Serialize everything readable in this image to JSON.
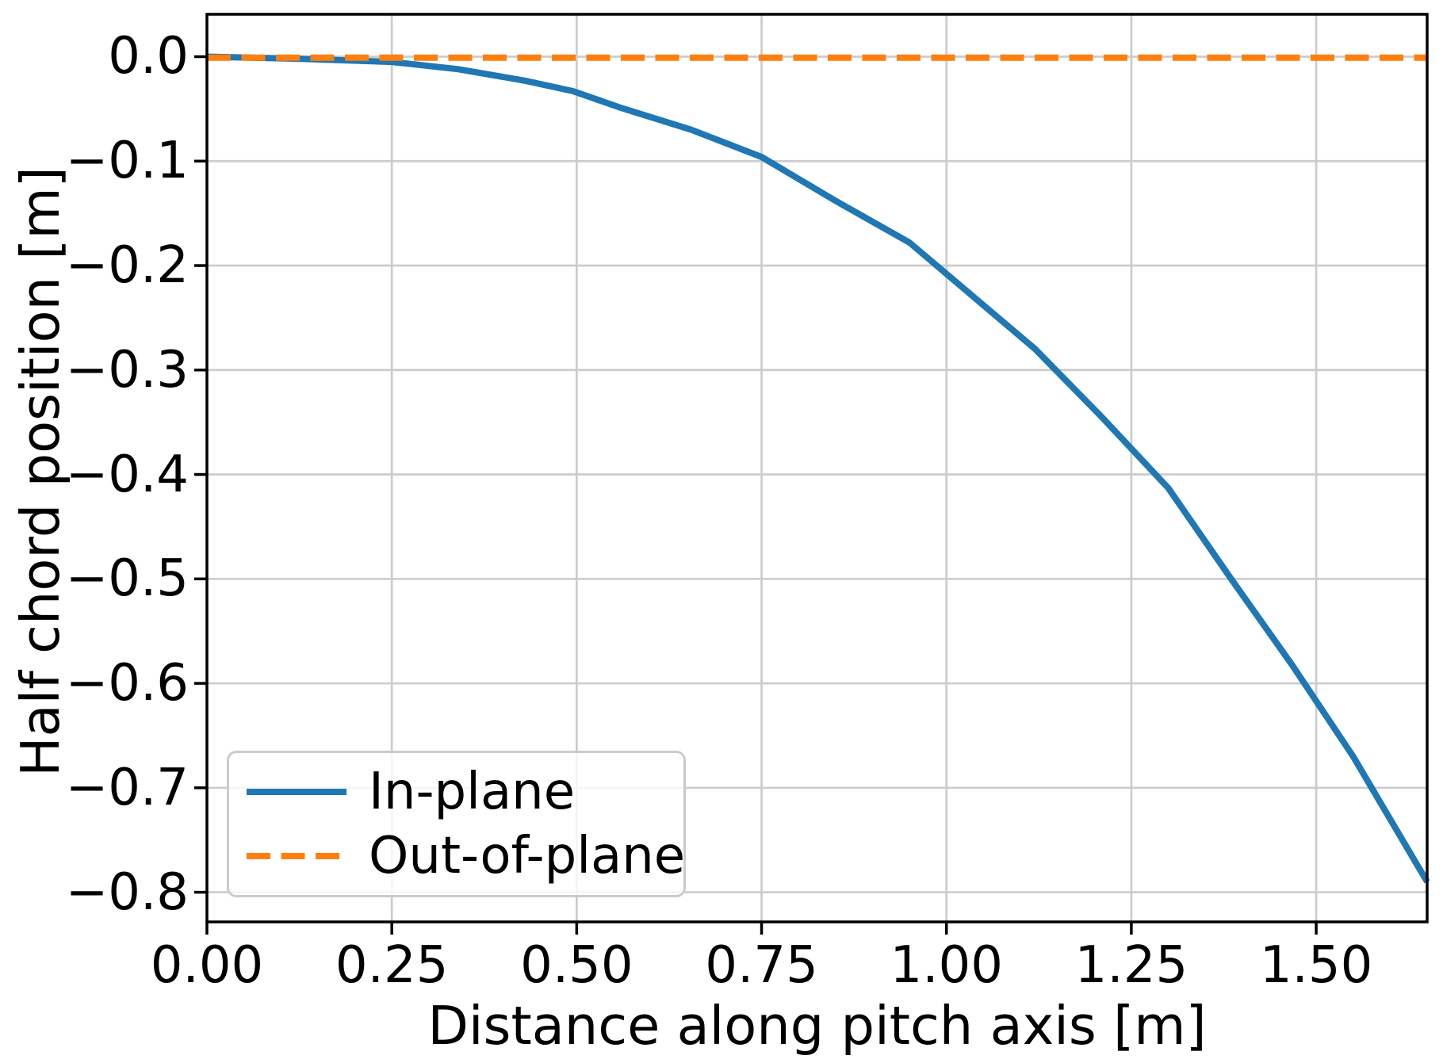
{
  "chart_data": {
    "type": "line",
    "xlabel": "Distance along pitch axis [m]",
    "ylabel": "Half chord position [m]",
    "xlim": [
      0,
      1.65
    ],
    "ylim": [
      -0.8284,
      0.0406
    ],
    "grid": true,
    "colors": {
      "grid": "#cccccc",
      "spine": "#000000",
      "background": "#ffffff",
      "in_plane": "#1f77b4",
      "out_of_plane": "#ff7f0e"
    },
    "xticks": {
      "values": [
        0,
        0.25,
        0.5,
        0.75,
        1.0,
        1.25,
        1.5
      ],
      "labels": [
        "0.00",
        "0.25",
        "0.50",
        "0.75",
        "1.00",
        "1.25",
        "1.50"
      ]
    },
    "yticks": {
      "values": [
        0,
        -0.1,
        -0.2,
        -0.3,
        -0.4,
        -0.5,
        -0.6,
        -0.7,
        -0.8
      ],
      "labels": [
        "0.0",
        "−0.1",
        "−0.2",
        "−0.3",
        "−0.4",
        "−0.5",
        "−0.6",
        "−0.7",
        "−0.8"
      ]
    },
    "legend": {
      "position": "lower left",
      "entries": [
        {
          "label": "In-plane",
          "color": "#1f77b4",
          "line_style": "solid"
        },
        {
          "label": "Out-of-plane",
          "color": "#ff7f0e",
          "line_style": "dashed"
        }
      ]
    },
    "series": [
      {
        "name": "In-plane",
        "color": "#1f77b4",
        "line_style": "solid",
        "line_width": 8,
        "points": [
          [
            0.0,
            0.0
          ],
          [
            0.125,
            -0.002
          ],
          [
            0.25,
            -0.005
          ],
          [
            0.34,
            -0.012
          ],
          [
            0.43,
            -0.023
          ],
          [
            0.495,
            -0.033
          ],
          [
            0.56,
            -0.049
          ],
          [
            0.655,
            -0.07
          ],
          [
            0.75,
            -0.096
          ],
          [
            0.85,
            -0.138
          ],
          [
            0.95,
            -0.178
          ],
          [
            1.035,
            -0.229
          ],
          [
            1.12,
            -0.28
          ],
          [
            1.21,
            -0.345
          ],
          [
            1.3,
            -0.413
          ],
          [
            1.385,
            -0.5
          ],
          [
            1.467,
            -0.582
          ],
          [
            1.55,
            -0.67
          ],
          [
            1.65,
            -0.79
          ]
        ]
      },
      {
        "name": "Out-of-plane",
        "color": "#ff7f0e",
        "line_style": "dashed",
        "line_width": 8,
        "points": [
          [
            0.0,
            -0.001
          ],
          [
            1.65,
            -0.001
          ]
        ]
      }
    ]
  }
}
